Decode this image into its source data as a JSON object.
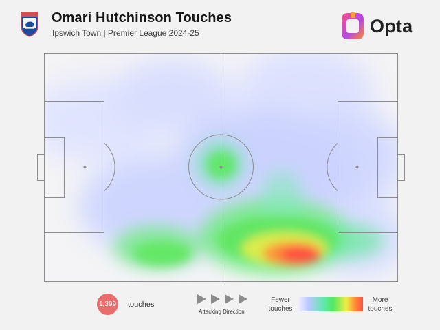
{
  "header": {
    "title": "Omari Hutchinson Touches",
    "subtitle": "Ipswich Town | Premier League 2024-25"
  },
  "brand": {
    "name": "Opta",
    "icon": "opta-logo-icon"
  },
  "summary": {
    "touch_count": "1,399",
    "touch_label": "touches",
    "direction_label": "Attacking Direction"
  },
  "legend": {
    "fewer": "Fewer\ntouches",
    "more": "More\ntouches",
    "colors": [
      "#eef0ff",
      "#b9c6ff",
      "#64e7b0",
      "#51e95e",
      "#efee46",
      "#ff8b36",
      "#ff4e45"
    ]
  },
  "icons": {
    "crest": "club-crest-icon",
    "arrow": "play-arrow-icon"
  },
  "colors": {
    "accent": "#e96d6d",
    "lines": "#8d8d8d",
    "background": "#f2f2f3"
  }
}
